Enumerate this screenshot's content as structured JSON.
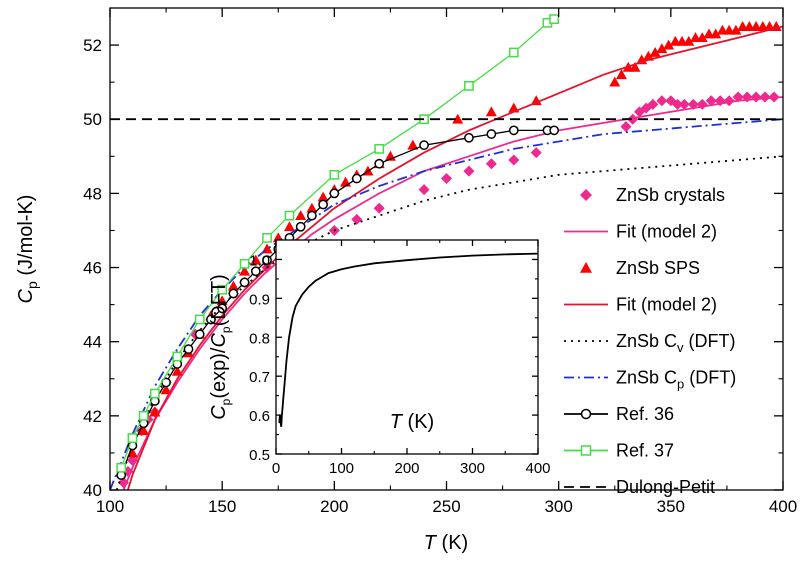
{
  "chart_data": [
    {
      "type": "line",
      "xlabel": "T (K)",
      "ylabel": "Cp (J/mol-K)",
      "xlim": [
        100,
        400
      ],
      "ylim": [
        40,
        53
      ],
      "xticks": [
        100,
        150,
        200,
        250,
        300,
        350,
        400
      ],
      "yticks": [
        40,
        42,
        44,
        46,
        48,
        50,
        52
      ],
      "legend_position": "right",
      "series": [
        {
          "name": "ZnSb crystals",
          "style": "scatter",
          "marker": "diamond",
          "color": "#ee2a8f",
          "x": [
            106,
            108,
            110,
            114,
            117,
            120,
            125,
            130,
            138,
            145,
            150,
            155,
            160,
            170,
            180,
            190,
            200,
            210,
            220,
            240,
            250,
            260,
            270,
            280,
            290,
            330,
            333,
            336,
            339,
            342,
            346,
            350,
            353,
            356,
            360,
            364,
            368,
            372,
            376,
            380,
            384,
            388,
            392,
            396
          ],
          "y": [
            40.2,
            40.5,
            40.8,
            41.6,
            41.9,
            42.1,
            42.9,
            43.6,
            44.2,
            44.6,
            44.9,
            45.3,
            45.6,
            46.0,
            46.3,
            46.6,
            47.0,
            47.3,
            47.6,
            48.1,
            48.4,
            48.6,
            48.8,
            48.9,
            49.1,
            49.8,
            50.0,
            50.2,
            50.3,
            50.4,
            50.5,
            50.5,
            50.4,
            50.4,
            50.4,
            50.4,
            50.5,
            50.5,
            50.5,
            50.6,
            50.6,
            50.6,
            50.6,
            50.6
          ]
        },
        {
          "name": "Fit (model 2)",
          "style": "line",
          "color": "#ee2a8f",
          "x": [
            106,
            110,
            120,
            130,
            140,
            150,
            160,
            170,
            180,
            190,
            200,
            220,
            240,
            260,
            280,
            300,
            320,
            340,
            360,
            380,
            400
          ],
          "y": [
            40.0,
            40.6,
            41.9,
            42.9,
            43.8,
            44.6,
            45.3,
            45.9,
            46.4,
            46.9,
            47.3,
            48.0,
            48.6,
            49.0,
            49.4,
            49.7,
            49.9,
            50.1,
            50.3,
            50.5,
            50.6
          ]
        },
        {
          "name": "ZnSb SPS",
          "style": "scatter",
          "marker": "triangle",
          "color": "#ff0000",
          "x": [
            110,
            115,
            120,
            125,
            130,
            135,
            140,
            145,
            150,
            155,
            160,
            165,
            170,
            175,
            180,
            185,
            190,
            195,
            200,
            205,
            210,
            215,
            220,
            225,
            235,
            255,
            270,
            280,
            290,
            325,
            328,
            331,
            334,
            337,
            340,
            343,
            346,
            349,
            352,
            355,
            358,
            361,
            364,
            367,
            370,
            373,
            376,
            379,
            382,
            385,
            388,
            391,
            394,
            397
          ],
          "y": [
            41.0,
            41.6,
            42.1,
            42.7,
            43.2,
            43.7,
            44.2,
            44.7,
            45.1,
            45.5,
            45.9,
            46.2,
            46.5,
            46.8,
            47.1,
            47.4,
            47.6,
            47.9,
            48.1,
            48.3,
            48.5,
            48.6,
            48.8,
            49.0,
            49.3,
            50.0,
            50.2,
            50.3,
            50.5,
            51.0,
            51.2,
            51.4,
            51.4,
            51.6,
            51.7,
            51.8,
            51.9,
            52.0,
            52.1,
            52.1,
            52.1,
            52.2,
            52.2,
            52.3,
            52.3,
            52.4,
            52.4,
            52.4,
            52.5,
            52.5,
            52.5,
            52.5,
            52.5,
            52.5
          ]
        },
        {
          "name": "Fit (model 2)",
          "style": "line",
          "color": "#e8112d",
          "x": [
            108,
            110,
            120,
            130,
            140,
            150,
            160,
            170,
            180,
            190,
            200,
            220,
            240,
            260,
            280,
            300,
            320,
            340,
            360,
            380,
            400
          ],
          "y": [
            40.0,
            40.4,
            41.9,
            43.0,
            43.9,
            44.7,
            45.4,
            46.0,
            46.6,
            47.1,
            47.6,
            48.4,
            49.1,
            49.7,
            50.2,
            50.7,
            51.2,
            51.6,
            51.9,
            52.2,
            52.5
          ]
        },
        {
          "name": "ZnSb Cv (DFT)",
          "style": "line",
          "dash": "dot",
          "color": "#000000",
          "x": [
            103,
            110,
            120,
            130,
            140,
            150,
            160,
            170,
            180,
            200,
            220,
            240,
            260,
            280,
            300,
            320,
            340,
            360,
            380,
            400
          ],
          "y": [
            40.0,
            41.2,
            42.5,
            43.5,
            44.3,
            45.0,
            45.5,
            46.0,
            46.4,
            47.0,
            47.4,
            47.8,
            48.1,
            48.3,
            48.5,
            48.6,
            48.7,
            48.8,
            48.9,
            49.0
          ]
        },
        {
          "name": "ZnSb Cp (DFT)",
          "style": "line",
          "dash": "dashdot",
          "color": "#1f2fd6",
          "x": [
            100,
            110,
            120,
            130,
            140,
            150,
            160,
            170,
            180,
            200,
            220,
            240,
            260,
            280,
            300,
            320,
            340,
            360,
            380,
            400
          ],
          "y": [
            40.0,
            41.5,
            42.8,
            43.8,
            44.7,
            45.4,
            46.0,
            46.5,
            46.9,
            47.7,
            48.2,
            48.6,
            48.9,
            49.2,
            49.4,
            49.6,
            49.7,
            49.8,
            49.9,
            50.0
          ]
        },
        {
          "name": "Ref. 36",
          "style": "line+marker",
          "marker": "open-circle",
          "color": "#000000",
          "x": [
            105,
            110,
            115,
            120,
            125,
            130,
            135,
            140,
            145,
            150,
            155,
            160,
            165,
            170,
            175,
            180,
            185,
            190,
            195,
            200,
            210,
            220,
            240,
            260,
            270,
            280,
            295,
            298
          ],
          "y": [
            40.4,
            41.2,
            41.8,
            42.4,
            42.9,
            43.4,
            43.8,
            44.2,
            44.6,
            44.9,
            45.3,
            45.6,
            45.9,
            46.2,
            46.5,
            46.8,
            47.1,
            47.4,
            47.7,
            48.0,
            48.4,
            48.8,
            49.3,
            49.5,
            49.6,
            49.7,
            49.7,
            49.7
          ]
        },
        {
          "name": "Ref. 37",
          "style": "line+marker",
          "marker": "open-square",
          "color": "#44dd44",
          "x": [
            105,
            110,
            115,
            120,
            130,
            140,
            150,
            160,
            170,
            180,
            200,
            220,
            240,
            260,
            280,
            295,
            298
          ],
          "y": [
            40.6,
            41.4,
            42.0,
            42.6,
            43.6,
            44.6,
            45.4,
            46.1,
            46.8,
            47.4,
            48.5,
            49.2,
            50.0,
            50.9,
            51.8,
            52.6,
            52.7
          ]
        },
        {
          "name": "Dulong-Petit",
          "style": "line",
          "dash": "dash",
          "color": "#000000",
          "x": [
            100,
            400
          ],
          "y": [
            50,
            50
          ]
        }
      ]
    },
    {
      "type": "line",
      "xlabel": "T (K)",
      "ylabel": "Cp(exp)/Cp(DFT)",
      "xlim": [
        0,
        400
      ],
      "ylim": [
        0.5,
        1.05
      ],
      "xticks": [
        0,
        100,
        200,
        300,
        400
      ],
      "yticks": [
        0.5,
        0.6,
        0.7,
        0.8,
        0.9,
        1.0
      ],
      "series": [
        {
          "style": "line",
          "color": "#000000",
          "x": [
            5,
            6,
            7,
            8,
            9,
            10,
            11,
            12,
            14,
            16,
            18,
            20,
            25,
            30,
            40,
            50,
            60,
            70,
            80,
            100,
            120,
            150,
            200,
            250,
            300,
            350,
            400
          ],
          "y": [
            0.58,
            0.6,
            0.58,
            0.57,
            0.6,
            0.62,
            0.64,
            0.66,
            0.7,
            0.74,
            0.77,
            0.8,
            0.85,
            0.88,
            0.91,
            0.93,
            0.945,
            0.955,
            0.965,
            0.975,
            0.982,
            0.99,
            0.998,
            1.005,
            1.01,
            1.013,
            1.015
          ]
        }
      ]
    }
  ],
  "legend": {
    "items": [
      {
        "label": "ZnSb crystals",
        "sub": "",
        "suffix": ""
      },
      {
        "label": "Fit (model 2)",
        "sub": "",
        "suffix": ""
      },
      {
        "label": "ZnSb SPS",
        "sub": "",
        "suffix": ""
      },
      {
        "label": "Fit (model 2)",
        "sub": "",
        "suffix": ""
      },
      {
        "label": "ZnSb C",
        "sub": "v",
        "suffix": " (DFT)"
      },
      {
        "label": "ZnSb C",
        "sub": "p",
        "suffix": " (DFT)"
      },
      {
        "label": "Ref. 36",
        "sub": "",
        "suffix": ""
      },
      {
        "label": "Ref. 37",
        "sub": "",
        "suffix": ""
      },
      {
        "label": "Dulong-Petit",
        "sub": "",
        "suffix": ""
      }
    ]
  },
  "axes": {
    "main_x": {
      "var": "T",
      "unit": " (K)"
    },
    "main_y": {
      "var": "C",
      "sub": "p",
      "unit": " (J/mol-K)"
    },
    "inset_x": {
      "var": "T",
      "unit": " (K)"
    },
    "inset_y": {
      "p1": "C",
      "s1": "p",
      "p2": "(exp)/",
      "p3": "C",
      "s2": "p",
      "p4": "(DFT)"
    }
  }
}
